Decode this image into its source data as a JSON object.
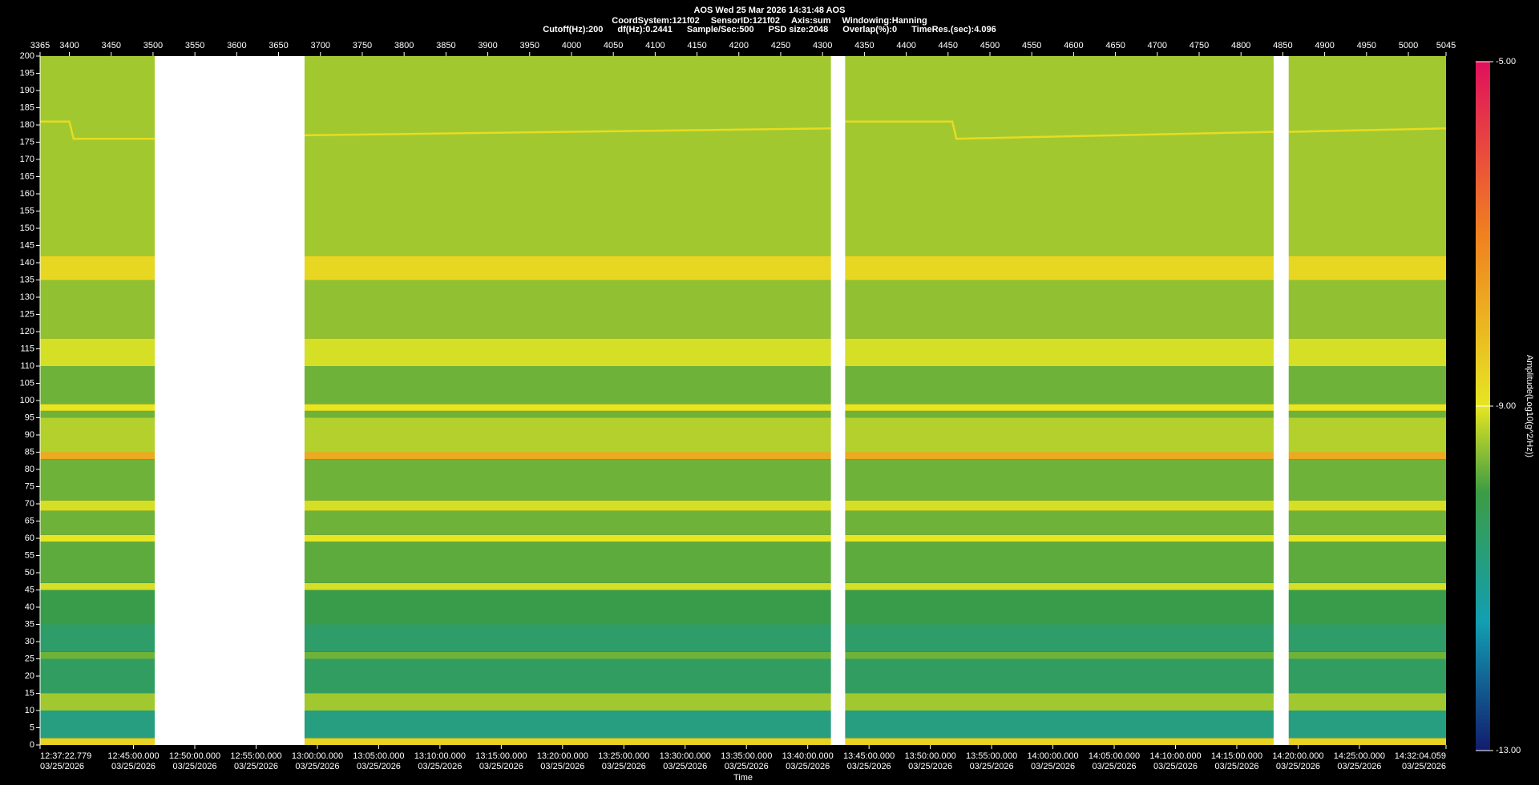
{
  "chart_data": {
    "type": "spectrogram",
    "title": "AOS  Wed 25 Mar 2026 14:31:48  AOS",
    "subtitle": [
      "CoordSystem:121f02",
      "SensorID:121f02",
      "Axis:sum",
      "Windowing:Hanning"
    ],
    "info": [
      "Cutoff(Hz):200",
      "df(Hz):0.2441",
      "Sample/Sec:500",
      "PSD size:2048",
      "Overlap(%):0",
      "TimeRes.(sec):4.096"
    ],
    "xlabel": "Time",
    "colorbar_label": "Amplitude(Log10(g^2/Hz))",
    "xlim": [
      3365,
      5045
    ],
    "xticks": [
      3365,
      3400,
      3450,
      3500,
      3550,
      3600,
      3650,
      3700,
      3750,
      3800,
      3850,
      3900,
      3950,
      4000,
      4050,
      4100,
      4150,
      4200,
      4250,
      4300,
      4350,
      4400,
      4450,
      4500,
      4550,
      4600,
      4650,
      4700,
      4750,
      4800,
      4850,
      4900,
      4950,
      5000,
      5045
    ],
    "time_lim": [
      {
        "time": "12:37:22.779",
        "date": "03/25/2026"
      },
      {
        "time": "14:32:04.059",
        "date": "03/25/2026"
      }
    ],
    "time_ticks": [
      {
        "time": "12:45:00.000",
        "date": "03/25/2026"
      },
      {
        "time": "12:50:00.000",
        "date": "03/25/2026"
      },
      {
        "time": "12:55:00.000",
        "date": "03/25/2026"
      },
      {
        "time": "13:00:00.000",
        "date": "03/25/2026"
      },
      {
        "time": "13:05:00.000",
        "date": "03/25/2026"
      },
      {
        "time": "13:10:00.000",
        "date": "03/25/2026"
      },
      {
        "time": "13:15:00.000",
        "date": "03/25/2026"
      },
      {
        "time": "13:20:00.000",
        "date": "03/25/2026"
      },
      {
        "time": "13:25:00.000",
        "date": "03/25/2026"
      },
      {
        "time": "13:30:00.000",
        "date": "03/25/2026"
      },
      {
        "time": "13:35:00.000",
        "date": "03/25/2026"
      },
      {
        "time": "13:40:00.000",
        "date": "03/25/2026"
      },
      {
        "time": "13:45:00.000",
        "date": "03/25/2026"
      },
      {
        "time": "13:50:00.000",
        "date": "03/25/2026"
      },
      {
        "time": "13:55:00.000",
        "date": "03/25/2026"
      },
      {
        "time": "14:00:00.000",
        "date": "03/25/2026"
      },
      {
        "time": "14:05:00.000",
        "date": "03/25/2026"
      },
      {
        "time": "14:10:00.000",
        "date": "03/25/2026"
      },
      {
        "time": "14:15:00.000",
        "date": "03/25/2026"
      },
      {
        "time": "14:20:00.000",
        "date": "03/25/2026"
      },
      {
        "time": "14:25:00.000",
        "date": "03/25/2026"
      }
    ],
    "ylim": [
      0,
      200
    ],
    "yticks": [
      0,
      5,
      10,
      15,
      20,
      25,
      30,
      35,
      40,
      45,
      50,
      55,
      60,
      65,
      70,
      75,
      80,
      85,
      90,
      95,
      100,
      105,
      110,
      115,
      120,
      125,
      130,
      135,
      140,
      145,
      150,
      155,
      160,
      165,
      170,
      175,
      180,
      185,
      190,
      195,
      200
    ],
    "clim": [
      -13,
      -5
    ],
    "cticks": [
      {
        "value": -5,
        "label": "-5.00"
      },
      {
        "value": -9,
        "label": "-9.00"
      },
      {
        "value": -13,
        "label": "-13.00"
      }
    ],
    "colorscale": [
      [
        -13,
        "#121c6e"
      ],
      [
        -11.5,
        "#129fb2"
      ],
      [
        -10,
        "#3c9c44"
      ],
      [
        -9,
        "#e6e622"
      ],
      [
        -7,
        "#f08020"
      ],
      [
        -5,
        "#e0105c"
      ]
    ],
    "bands": [
      {
        "range": [
          0,
          2
        ],
        "amplitude": -8.6
      },
      {
        "range": [
          2,
          10
        ],
        "amplitude": -10.8
      },
      {
        "range": [
          10,
          15
        ],
        "amplitude": -9.4
      },
      {
        "range": [
          15,
          25
        ],
        "amplitude": -10.4
      },
      {
        "range": [
          25,
          27
        ],
        "amplitude": -9.7
      },
      {
        "range": [
          27,
          35
        ],
        "amplitude": -10.5
      },
      {
        "range": [
          35,
          45
        ],
        "amplitude": -10.1
      },
      {
        "range": [
          45,
          47
        ],
        "amplitude": -9.1
      },
      {
        "range": [
          47,
          59
        ],
        "amplitude": -9.8
      },
      {
        "range": [
          59,
          61
        ],
        "amplitude": -9.0
      },
      {
        "range": [
          61,
          68
        ],
        "amplitude": -9.7
      },
      {
        "range": [
          68,
          71
        ],
        "amplitude": -9.1
      },
      {
        "range": [
          71,
          83
        ],
        "amplitude": -9.7
      },
      {
        "range": [
          83,
          85
        ],
        "amplitude": -7.8
      },
      {
        "range": [
          85,
          95
        ],
        "amplitude": -9.3
      },
      {
        "range": [
          95,
          97
        ],
        "amplitude": -9.7
      },
      {
        "range": [
          97,
          99
        ],
        "amplitude": -9.0
      },
      {
        "range": [
          99,
          110
        ],
        "amplitude": -9.7
      },
      {
        "range": [
          110,
          118
        ],
        "amplitude": -9.1
      },
      {
        "range": [
          118,
          135
        ],
        "amplitude": -9.5
      },
      {
        "range": [
          135,
          142
        ],
        "amplitude": -8.7
      },
      {
        "range": [
          142,
          200
        ],
        "amplitude": -9.4
      }
    ],
    "tracks": [
      {
        "x": [
          3365,
          3400,
          3405,
          3502
        ],
        "y": [
          181,
          181,
          176,
          176
        ],
        "amplitude": -8.8
      },
      {
        "x": [
          3681,
          4310
        ],
        "y": [
          177,
          179
        ],
        "amplitude": -8.8
      },
      {
        "x": [
          4327,
          4455,
          4460,
          4839
        ],
        "y": [
          181,
          181,
          176,
          178
        ],
        "amplitude": -8.8
      },
      {
        "x": [
          4857,
          5045
        ],
        "y": [
          178,
          179
        ],
        "amplitude": -8.8
      }
    ],
    "gaps": [
      [
        3502,
        3681
      ],
      [
        4310,
        4327
      ],
      [
        4839,
        4857
      ]
    ]
  }
}
